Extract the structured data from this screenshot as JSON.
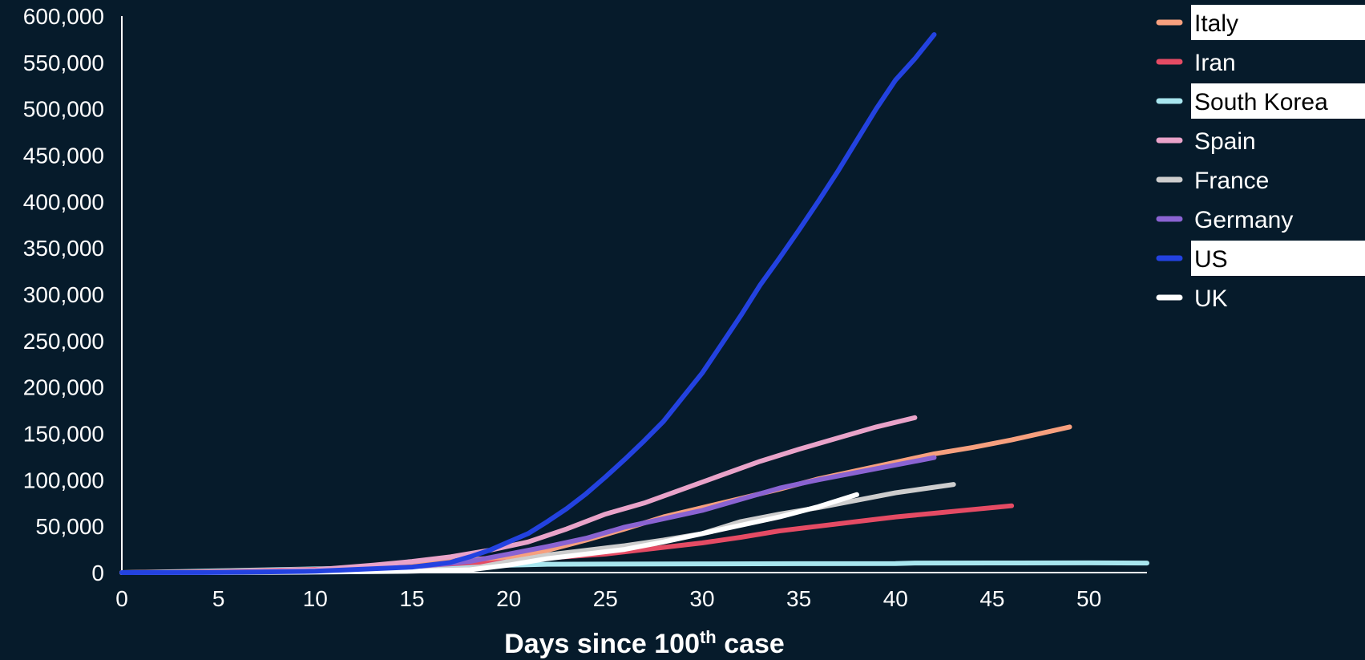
{
  "chart_data": {
    "type": "line",
    "title": "",
    "xlabel": "Days since 100",
    "xlabel_sup": "th",
    "xlabel_tail": " case",
    "ylabel": "",
    "xlim": [
      0,
      53
    ],
    "ylim": [
      0,
      600000
    ],
    "x_ticks": [
      0,
      5,
      10,
      15,
      20,
      25,
      30,
      35,
      40,
      45,
      50
    ],
    "x_tick_labels": [
      "0",
      "5",
      "10",
      "15",
      "20",
      "25",
      "30",
      "35",
      "40",
      "45",
      "50"
    ],
    "y_ticks": [
      0,
      50000,
      100000,
      150000,
      200000,
      250000,
      300000,
      350000,
      400000,
      450000,
      500000,
      550000,
      600000
    ],
    "y_tick_labels": [
      "0",
      "50,000",
      "100,000",
      "150,000",
      "200,000",
      "250,000",
      "300,000",
      "350,000",
      "400,000",
      "450,000",
      "500,000",
      "550,000",
      "600,000"
    ],
    "grid": false,
    "legend_position": "right",
    "series": [
      {
        "name": "Italy",
        "color": "#f7a07e",
        "highlighted": true,
        "x": [
          0,
          5,
          10,
          15,
          20,
          22,
          24,
          26,
          28,
          30,
          32,
          34,
          36,
          38,
          40,
          42,
          44,
          46,
          49
        ],
        "y": [
          0,
          500,
          3000,
          9000,
          17000,
          24000,
          35000,
          47000,
          60000,
          70000,
          80000,
          90000,
          101000,
          110000,
          119000,
          128000,
          135000,
          143000,
          157000
        ]
      },
      {
        "name": "Iran",
        "color": "#e54b64",
        "highlighted": false,
        "x": [
          0,
          5,
          10,
          15,
          20,
          25,
          30,
          32,
          34,
          36,
          38,
          40,
          42,
          44,
          46
        ],
        "y": [
          0,
          1000,
          3500,
          7000,
          13000,
          20000,
          32000,
          38000,
          45000,
          50000,
          55000,
          60000,
          64000,
          68000,
          72000
        ]
      },
      {
        "name": "South Korea",
        "color": "#a8e6ef",
        "highlighted": true,
        "x": [
          0,
          3,
          5,
          10,
          15,
          18,
          20,
          22,
          25,
          30,
          35,
          40,
          41,
          45,
          50,
          53
        ],
        "y": [
          0,
          1000,
          2000,
          4000,
          6000,
          7500,
          8000,
          9000,
          9200,
          9400,
          9600,
          9800,
          10300,
          10400,
          10500,
          10300
        ]
      },
      {
        "name": "Spain",
        "color": "#e9a3c9",
        "highlighted": false,
        "x": [
          0,
          5,
          10,
          13,
          15,
          17,
          19,
          21,
          23,
          25,
          27,
          29,
          31,
          33,
          35,
          37,
          39,
          41
        ],
        "y": [
          0,
          500,
          3000,
          8000,
          12000,
          17000,
          24000,
          33000,
          47000,
          63000,
          75000,
          90000,
          105000,
          120000,
          133000,
          145000,
          157000,
          167000
        ]
      },
      {
        "name": "France",
        "color": "#cdcdcd",
        "highlighted": false,
        "x": [
          0,
          5,
          10,
          15,
          18,
          20,
          22,
          24,
          26,
          28,
          30,
          32,
          34,
          36,
          38,
          40,
          43
        ],
        "y": [
          0,
          200,
          1000,
          2500,
          4000,
          12000,
          19000,
          24000,
          29000,
          35000,
          42000,
          55000,
          63000,
          70000,
          78000,
          86000,
          95000
        ]
      },
      {
        "name": "Germany",
        "color": "#8a63d2",
        "highlighted": false,
        "x": [
          0,
          5,
          10,
          15,
          18,
          20,
          22,
          24,
          26,
          28,
          30,
          32,
          34,
          36,
          38,
          40,
          42
        ],
        "y": [
          0,
          300,
          2000,
          6000,
          12000,
          20000,
          28000,
          37000,
          49000,
          58000,
          67000,
          79000,
          91000,
          100000,
          108000,
          116000,
          124000
        ]
      },
      {
        "name": "US",
        "color": "#2342e0",
        "highlighted": true,
        "x": [
          0,
          5,
          10,
          15,
          17,
          18,
          19,
          20,
          21,
          22,
          23,
          24,
          25,
          26,
          27,
          28,
          29,
          30,
          31,
          32,
          33,
          34,
          35,
          36,
          37,
          38,
          39,
          40,
          41,
          42
        ],
        "y": [
          0,
          200,
          1500,
          6000,
          11000,
          17000,
          24000,
          33000,
          42000,
          55000,
          69000,
          85000,
          103000,
          122000,
          142000,
          163000,
          189000,
          215000,
          246000,
          277000,
          310000,
          339000,
          369000,
          400000,
          432000,
          466000,
          500000,
          531000,
          554000,
          580000
        ]
      },
      {
        "name": "UK",
        "color": "#ffffff",
        "highlighted": false,
        "x": [
          0,
          5,
          10,
          15,
          18,
          20,
          22,
          24,
          26,
          28,
          30,
          32,
          34,
          36,
          38
        ],
        "y": [
          0,
          100,
          500,
          1500,
          3000,
          8000,
          15000,
          20000,
          25000,
          33000,
          42000,
          51000,
          60000,
          71000,
          84000
        ]
      }
    ]
  }
}
